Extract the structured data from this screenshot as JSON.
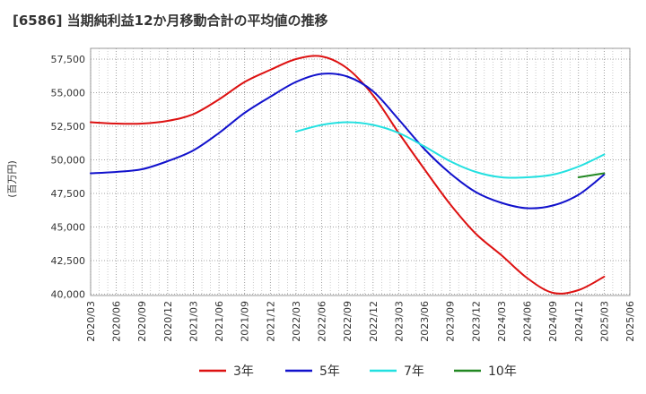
{
  "chart_data": {
    "type": "line",
    "title": "[6586]  当期純利益12か月移動合計の平均値の推移",
    "ylabel": "(百万円)",
    "xlabel": "",
    "ylim": [
      39900,
      58300
    ],
    "yticks": [
      40000,
      42500,
      45000,
      47500,
      50000,
      52500,
      55000,
      57500
    ],
    "ytick_labels": [
      "40,000",
      "42,500",
      "45,000",
      "47,500",
      "50,000",
      "52,500",
      "55,000",
      "57,500"
    ],
    "x_labels": [
      "2020/03",
      "2020/06",
      "2020/09",
      "2020/12",
      "2021/03",
      "2021/06",
      "2021/09",
      "2021/12",
      "2022/03",
      "2022/06",
      "2022/09",
      "2022/12",
      "2023/03",
      "2023/06",
      "2023/09",
      "2023/12",
      "2024/03",
      "2024/06",
      "2024/09",
      "2024/12",
      "2025/03",
      "2025/06"
    ],
    "grid": true,
    "legend_position": "bottom",
    "series": [
      {
        "name": "3年",
        "color": "#dd1111",
        "x": [
          "2020/03",
          "2020/06",
          "2020/09",
          "2020/12",
          "2021/03",
          "2021/06",
          "2021/09",
          "2021/12",
          "2022/03",
          "2022/06",
          "2022/09",
          "2022/12",
          "2023/03",
          "2023/06",
          "2023/09",
          "2023/12",
          "2024/03",
          "2024/06",
          "2024/09",
          "2024/12",
          "2025/03"
        ],
        "values": [
          52800,
          52700,
          52700,
          52900,
          53400,
          54500,
          55800,
          56700,
          57500,
          57700,
          56800,
          54800,
          52000,
          49300,
          46700,
          44500,
          42900,
          41200,
          40100,
          40300,
          41300
        ]
      },
      {
        "name": "5年",
        "color": "#1111cc",
        "x": [
          "2020/03",
          "2020/06",
          "2020/09",
          "2020/12",
          "2021/03",
          "2021/06",
          "2021/09",
          "2021/12",
          "2022/03",
          "2022/06",
          "2022/09",
          "2022/12",
          "2023/03",
          "2023/06",
          "2023/09",
          "2023/12",
          "2024/03",
          "2024/06",
          "2024/09",
          "2024/12",
          "2025/03"
        ],
        "values": [
          49000,
          49100,
          49300,
          49900,
          50700,
          52000,
          53500,
          54700,
          55800,
          56400,
          56200,
          55100,
          53000,
          50800,
          49000,
          47600,
          46800,
          46400,
          46600,
          47400,
          48900
        ]
      },
      {
        "name": "7年",
        "color": "#22e0e0",
        "x": [
          "2022/03",
          "2022/06",
          "2022/09",
          "2022/12",
          "2023/03",
          "2023/06",
          "2023/09",
          "2023/12",
          "2024/03",
          "2024/06",
          "2024/09",
          "2024/12",
          "2025/03"
        ],
        "values": [
          52100,
          52600,
          52800,
          52600,
          52000,
          51000,
          49900,
          49100,
          48700,
          48700,
          48900,
          49500,
          50400
        ]
      },
      {
        "name": "10年",
        "color": "#228822",
        "x": [
          "2024/12",
          "2025/03"
        ],
        "values": [
          48700,
          49000
        ]
      }
    ]
  }
}
